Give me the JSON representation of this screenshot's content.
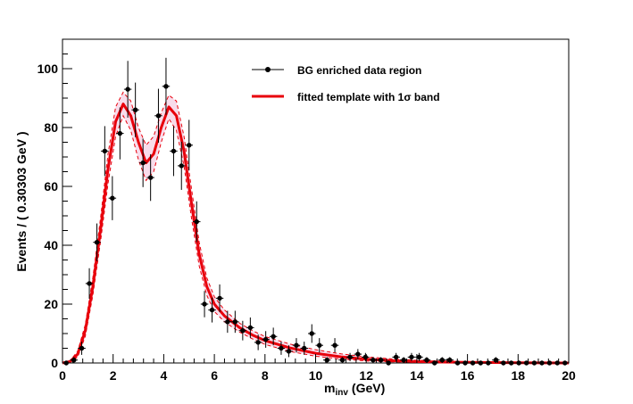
{
  "chart_data": {
    "type": "scatter",
    "title": "",
    "xlabel": "m",
    "xlabel_sub": "inv",
    "xlabel_unit": "(GeV)",
    "ylabel": "Events / ( 0.30303 GeV )",
    "xlim": [
      0,
      20
    ],
    "ylim": [
      0,
      110
    ],
    "x_ticks": [
      0,
      2,
      4,
      6,
      8,
      10,
      12,
      14,
      16,
      18,
      20
    ],
    "y_ticks": [
      0,
      20,
      40,
      60,
      80,
      100
    ],
    "grid": false,
    "legend_position": "top-right",
    "colors": {
      "data": "#000000",
      "fit": "#e8000b",
      "band": "#d63b8f"
    },
    "legend": [
      {
        "label": "BG enriched data region",
        "style": "marker"
      },
      {
        "label": "fitted template with 1σ band",
        "style": "line"
      }
    ],
    "series": [
      {
        "name": "BG enriched data region",
        "kind": "points",
        "points": [
          [
            0.15,
            0
          ],
          [
            0.45,
            1
          ],
          [
            0.76,
            5
          ],
          [
            1.06,
            27
          ],
          [
            1.36,
            41
          ],
          [
            1.67,
            72
          ],
          [
            1.97,
            56
          ],
          [
            2.27,
            78
          ],
          [
            2.58,
            93
          ],
          [
            2.88,
            86
          ],
          [
            3.18,
            68
          ],
          [
            3.48,
            63
          ],
          [
            3.79,
            84
          ],
          [
            4.09,
            94
          ],
          [
            4.39,
            72
          ],
          [
            4.7,
            67
          ],
          [
            5.0,
            74
          ],
          [
            5.3,
            48
          ],
          [
            5.61,
            20
          ],
          [
            5.91,
            18
          ],
          [
            6.21,
            22
          ],
          [
            6.52,
            14
          ],
          [
            6.82,
            14
          ],
          [
            7.12,
            11
          ],
          [
            7.42,
            12
          ],
          [
            7.73,
            7
          ],
          [
            8.03,
            8
          ],
          [
            8.33,
            9
          ],
          [
            8.64,
            5
          ],
          [
            8.94,
            4
          ],
          [
            9.24,
            6
          ],
          [
            9.55,
            5
          ],
          [
            9.85,
            10
          ],
          [
            10.15,
            6
          ],
          [
            10.45,
            1
          ],
          [
            10.76,
            6
          ],
          [
            11.06,
            1
          ],
          [
            11.36,
            2
          ],
          [
            11.67,
            3
          ],
          [
            11.97,
            2
          ],
          [
            12.27,
            1
          ],
          [
            12.58,
            1
          ],
          [
            12.88,
            0
          ],
          [
            13.18,
            2
          ],
          [
            13.48,
            1
          ],
          [
            13.79,
            2
          ],
          [
            14.09,
            2
          ],
          [
            14.39,
            1
          ],
          [
            14.7,
            0
          ],
          [
            15.0,
            1
          ],
          [
            15.3,
            1
          ],
          [
            15.61,
            0
          ],
          [
            15.91,
            0
          ],
          [
            16.21,
            0
          ],
          [
            16.52,
            0
          ],
          [
            16.82,
            0
          ],
          [
            17.12,
            1
          ],
          [
            17.42,
            0
          ],
          [
            17.73,
            0
          ],
          [
            18.03,
            0
          ],
          [
            18.33,
            0
          ],
          [
            18.64,
            0
          ],
          [
            18.94,
            0
          ],
          [
            19.24,
            0
          ],
          [
            19.55,
            0
          ],
          [
            19.85,
            0
          ]
        ]
      },
      {
        "name": "fitted template with 1σ band",
        "kind": "curve",
        "points": [
          [
            0,
            0
          ],
          [
            0.3,
            0.5
          ],
          [
            0.6,
            3
          ],
          [
            0.9,
            11
          ],
          [
            1.2,
            26
          ],
          [
            1.5,
            45
          ],
          [
            1.8,
            66
          ],
          [
            2.1,
            82
          ],
          [
            2.4,
            88
          ],
          [
            2.7,
            84
          ],
          [
            3.0,
            75
          ],
          [
            3.3,
            68
          ],
          [
            3.6,
            71
          ],
          [
            3.9,
            80
          ],
          [
            4.2,
            87
          ],
          [
            4.5,
            84
          ],
          [
            4.8,
            72
          ],
          [
            5.1,
            54
          ],
          [
            5.4,
            37
          ],
          [
            5.7,
            26
          ],
          [
            6.0,
            20
          ],
          [
            6.4,
            16
          ],
          [
            7.0,
            12
          ],
          [
            7.5,
            9.5
          ],
          [
            8.0,
            7.6
          ],
          [
            9.0,
            5.1
          ],
          [
            10.0,
            3.3
          ],
          [
            11.0,
            2.1
          ],
          [
            12.0,
            1.3
          ],
          [
            13.0,
            0.8
          ],
          [
            14.0,
            0.5
          ],
          [
            15.0,
            0.3
          ],
          [
            16.0,
            0.2
          ],
          [
            18.0,
            0.1
          ],
          [
            20.0,
            0
          ]
        ]
      },
      {
        "name": "",
        "kind": "band-upper",
        "points": [
          [
            0,
            0
          ],
          [
            0.3,
            0.8
          ],
          [
            0.6,
            4
          ],
          [
            0.9,
            13
          ],
          [
            1.2,
            29
          ],
          [
            1.5,
            49
          ],
          [
            1.8,
            71
          ],
          [
            2.1,
            87
          ],
          [
            2.4,
            92
          ],
          [
            2.7,
            89
          ],
          [
            3.0,
            80
          ],
          [
            3.3,
            74
          ],
          [
            3.6,
            77
          ],
          [
            3.9,
            85
          ],
          [
            4.2,
            91
          ],
          [
            4.5,
            89
          ],
          [
            4.8,
            77
          ],
          [
            5.1,
            59
          ],
          [
            5.4,
            41
          ],
          [
            5.7,
            29
          ],
          [
            6.0,
            22.5
          ],
          [
            6.4,
            18
          ],
          [
            7.0,
            13.5
          ],
          [
            7.5,
            11
          ],
          [
            8.0,
            9
          ],
          [
            9.0,
            6.4
          ],
          [
            10.0,
            4.5
          ],
          [
            11.0,
            3.1
          ],
          [
            12.0,
            2.1
          ],
          [
            13.0,
            1.4
          ],
          [
            14.0,
            0.9
          ],
          [
            15.0,
            0.6
          ],
          [
            16.0,
            0.4
          ],
          [
            18.0,
            0.2
          ],
          [
            20.0,
            0.1
          ]
        ]
      },
      {
        "name": "",
        "kind": "band-lower",
        "points": [
          [
            0,
            0
          ],
          [
            0.3,
            0.3
          ],
          [
            0.6,
            2
          ],
          [
            0.9,
            9
          ],
          [
            1.2,
            23
          ],
          [
            1.5,
            41
          ],
          [
            1.8,
            61
          ],
          [
            2.1,
            77
          ],
          [
            2.4,
            84
          ],
          [
            2.7,
            79
          ],
          [
            3.0,
            69
          ],
          [
            3.3,
            62
          ],
          [
            3.6,
            65
          ],
          [
            3.9,
            75
          ],
          [
            4.2,
            83
          ],
          [
            4.5,
            79
          ],
          [
            4.8,
            67
          ],
          [
            5.1,
            49
          ],
          [
            5.4,
            33
          ],
          [
            5.7,
            23
          ],
          [
            6.0,
            17.5
          ],
          [
            6.4,
            14
          ],
          [
            7.0,
            10.5
          ],
          [
            7.5,
            8.2
          ],
          [
            8.0,
            6.3
          ],
          [
            9.0,
            3.9
          ],
          [
            10.0,
            2.3
          ],
          [
            11.0,
            1.3
          ],
          [
            12.0,
            0.7
          ],
          [
            13.0,
            0.4
          ],
          [
            14.0,
            0.2
          ],
          [
            15.0,
            0.1
          ],
          [
            16.0,
            0.05
          ],
          [
            18.0,
            0
          ],
          [
            20.0,
            0
          ]
        ]
      }
    ]
  }
}
